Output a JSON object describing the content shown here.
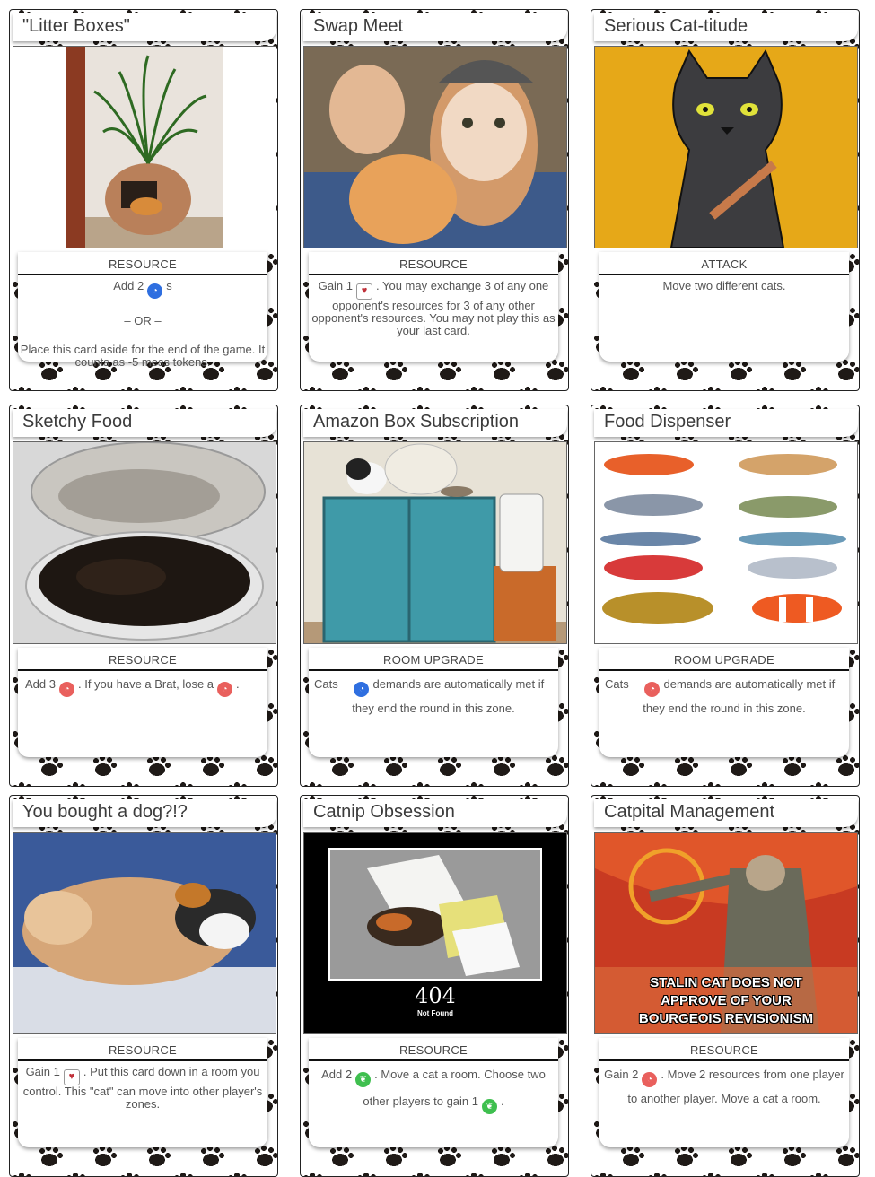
{
  "cards": [
    {
      "title": "\"Litter Boxes\"",
      "type": "RESOURCE",
      "line1a": "Add 2",
      "line1b": "s",
      "or": "– OR –",
      "line2": "Place this card aside for the end of the game. It counts as -5 mess tokens."
    },
    {
      "title": "Swap Meet",
      "type": "RESOURCE",
      "a": "Gain 1",
      "b": ". You may exchange 3 of any one opponent's resources for 3 of any other opponent's resources. You may not play this as your last card."
    },
    {
      "title": "Serious Cat-titude",
      "type": "ATTACK",
      "a": "Move two different cats."
    },
    {
      "title": "Sketchy Food",
      "type": "RESOURCE",
      "a": "Add 3",
      "b": ". If you have a Brat, lose a",
      "c": "."
    },
    {
      "title": "Amazon Box Subscription",
      "type": "ROOM UPGRADE",
      "a": "Cats",
      "b": "demands are automatically met if they end the round in this zone."
    },
    {
      "title": "Food Dispenser",
      "type": "ROOM UPGRADE",
      "a": "Cats",
      "b": "demands are automatically met if they end the round in this zone."
    },
    {
      "title": "You bought a dog?!?",
      "type": "RESOURCE",
      "a": "Gain 1",
      "b": ". Put this card down in a room you control. This \"cat\" can move into other player's zones."
    },
    {
      "title": "Catnip Obsession",
      "type": "RESOURCE",
      "a": "Add 2",
      "b": ". Move a cat a room. Choose two other players to gain 1",
      "c": ".",
      "art_big": "404",
      "art_small": "Not Found"
    },
    {
      "title": "Catpital Management",
      "type": "RESOURCE",
      "a": "Gain 2",
      "b": ". Move 2 resources from one player to another player. Move a cat a room.",
      "art_l1": "STALIN CAT DOES NOT",
      "art_l2": "APPROVE OF YOUR",
      "art_l3": "BOURGEOIS REVISIONISM"
    }
  ],
  "colors": {
    "blue": "#2f6fe0",
    "red": "#e9605d",
    "green": "#3fbf4f",
    "gold": "#e6a818"
  }
}
